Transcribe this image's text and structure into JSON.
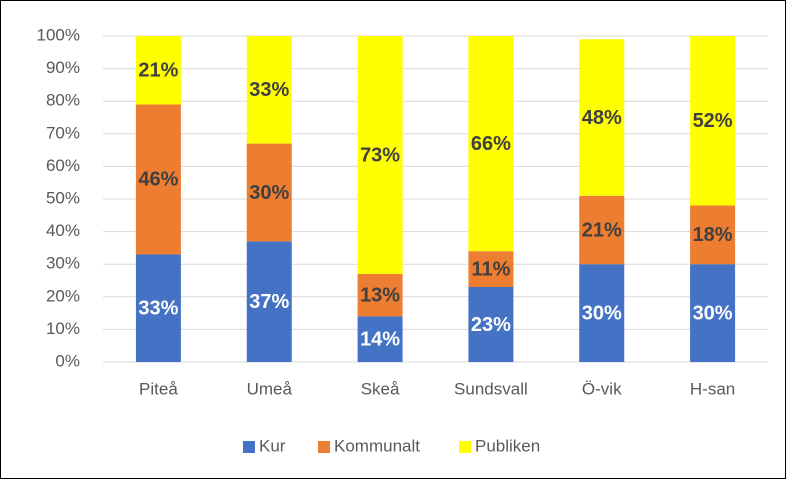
{
  "chart_data": {
    "type": "stacked_bar",
    "categories": [
      "Piteå",
      "Umeå",
      "Skeå",
      "Sundsvall",
      "Ö-vik",
      "H-san"
    ],
    "series": [
      {
        "name": "Kur",
        "color": "#4472c4",
        "values": [
          33,
          37,
          14,
          23,
          30,
          30
        ],
        "value_labels": [
          "33%",
          "37%",
          "14%",
          "23%",
          "30%",
          "30%"
        ]
      },
      {
        "name": "Kommunalt",
        "color": "#ed7d31",
        "values": [
          46,
          30,
          13,
          11,
          21,
          18
        ],
        "value_labels": [
          "46%",
          "30%",
          "13%",
          "11%",
          "21%",
          "18%"
        ]
      },
      {
        "name": "Publiken",
        "color": "#ffff00",
        "values": [
          21,
          33,
          73,
          66,
          48,
          52
        ],
        "value_labels": [
          "21%",
          "33%",
          "73%",
          "66%",
          "48%",
          "52%"
        ]
      }
    ],
    "ylim": [
      0,
      100
    ],
    "yticks": [
      {
        "value": 0,
        "label": "0%"
      },
      {
        "value": 10,
        "label": "10%"
      },
      {
        "value": 20,
        "label": "20%"
      },
      {
        "value": 30,
        "label": "30%"
      },
      {
        "value": 40,
        "label": "40%"
      },
      {
        "value": 50,
        "label": "50%"
      },
      {
        "value": 60,
        "label": "60%"
      },
      {
        "value": 70,
        "label": "70%"
      },
      {
        "value": 80,
        "label": "80%"
      },
      {
        "value": 90,
        "label": "90%"
      },
      {
        "value": 100,
        "label": "100%"
      }
    ],
    "grid": true,
    "legend": "bottom"
  }
}
